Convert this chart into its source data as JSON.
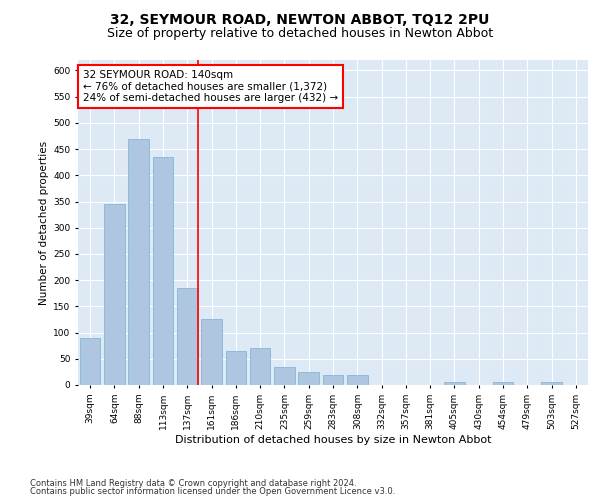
{
  "title": "32, SEYMOUR ROAD, NEWTON ABBOT, TQ12 2PU",
  "subtitle": "Size of property relative to detached houses in Newton Abbot",
  "xlabel": "Distribution of detached houses by size in Newton Abbot",
  "ylabel": "Number of detached properties",
  "categories": [
    "39sqm",
    "64sqm",
    "88sqm",
    "113sqm",
    "137sqm",
    "161sqm",
    "186sqm",
    "210sqm",
    "235sqm",
    "259sqm",
    "283sqm",
    "308sqm",
    "332sqm",
    "357sqm",
    "381sqm",
    "405sqm",
    "430sqm",
    "454sqm",
    "479sqm",
    "503sqm",
    "527sqm"
  ],
  "values": [
    90,
    345,
    470,
    435,
    185,
    125,
    65,
    70,
    35,
    25,
    20,
    20,
    0,
    0,
    0,
    5,
    0,
    5,
    0,
    5,
    0
  ],
  "bar_color": "#aec6df",
  "bar_edge_color": "#7aafd4",
  "red_line_index": 4,
  "annotation_line1": "32 SEYMOUR ROAD: 140sqm",
  "annotation_line2": "← 76% of detached houses are smaller (1,372)",
  "annotation_line3": "24% of semi-detached houses are larger (432) →",
  "ylim": [
    0,
    620
  ],
  "yticks": [
    0,
    50,
    100,
    150,
    200,
    250,
    300,
    350,
    400,
    450,
    500,
    550,
    600
  ],
  "plot_bg_color": "#ddeaf6",
  "grid_color": "#ffffff",
  "footer_line1": "Contains HM Land Registry data © Crown copyright and database right 2024.",
  "footer_line2": "Contains public sector information licensed under the Open Government Licence v3.0.",
  "title_fontsize": 10,
  "subtitle_fontsize": 9,
  "xlabel_fontsize": 8,
  "ylabel_fontsize": 7.5,
  "tick_fontsize": 6.5,
  "annotation_fontsize": 7.5,
  "footer_fontsize": 6
}
